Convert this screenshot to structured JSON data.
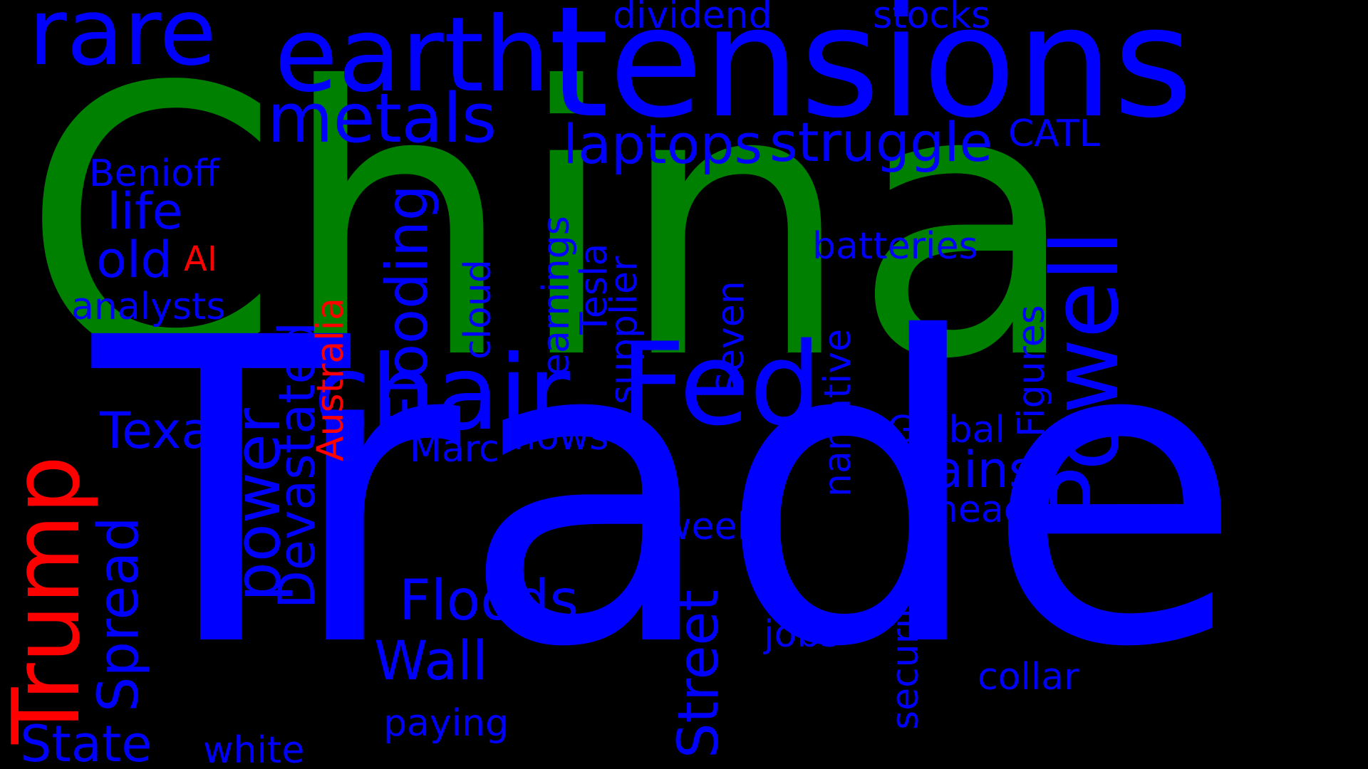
{
  "colors": {
    "background": "#000000",
    "blue": "#0000ff",
    "green": "#008000",
    "red": "#ff0000"
  },
  "words": [
    {
      "id": "china",
      "text": "China",
      "color": "green"
    },
    {
      "id": "trade",
      "text": "Trade",
      "color": "blue"
    },
    {
      "id": "tensions",
      "text": "tensions",
      "color": "blue"
    },
    {
      "id": "earth",
      "text": "earth",
      "color": "blue"
    },
    {
      "id": "rare",
      "text": "rare",
      "color": "blue"
    },
    {
      "id": "powell",
      "text": "Powell",
      "color": "blue"
    },
    {
      "id": "trump",
      "text": "Trump",
      "color": "red"
    },
    {
      "id": "chair",
      "text": "chair",
      "color": "blue"
    },
    {
      "id": "fed",
      "text": "Fed",
      "color": "blue"
    },
    {
      "id": "metals",
      "text": "metals",
      "color": "blue"
    },
    {
      "id": "laptops",
      "text": "laptops",
      "color": "blue"
    },
    {
      "id": "struggle",
      "text": "struggle",
      "color": "blue"
    },
    {
      "id": "dividend",
      "text": "dividend",
      "color": "blue"
    },
    {
      "id": "stocks",
      "text": "stocks",
      "color": "blue"
    },
    {
      "id": "catl",
      "text": "CATL",
      "color": "blue"
    },
    {
      "id": "benioff",
      "text": "Benioff",
      "color": "blue"
    },
    {
      "id": "life",
      "text": "life",
      "color": "blue"
    },
    {
      "id": "old",
      "text": "old",
      "color": "blue"
    },
    {
      "id": "ai",
      "text": "AI",
      "color": "red"
    },
    {
      "id": "analysts",
      "text": "analysts",
      "color": "blue"
    },
    {
      "id": "texas",
      "text": "Texas",
      "color": "blue"
    },
    {
      "id": "power",
      "text": "power",
      "color": "blue"
    },
    {
      "id": "spread",
      "text": "Spread",
      "color": "blue"
    },
    {
      "id": "state",
      "text": "State",
      "color": "blue"
    },
    {
      "id": "white",
      "text": "white",
      "color": "blue"
    },
    {
      "id": "devastated",
      "text": "Devastated",
      "color": "blue"
    },
    {
      "id": "australia",
      "text": "Australia",
      "color": "red"
    },
    {
      "id": "flooding",
      "text": "Flooding",
      "color": "blue"
    },
    {
      "id": "cloud",
      "text": "cloud",
      "color": "blue"
    },
    {
      "id": "earnings",
      "text": "earnings",
      "color": "blue"
    },
    {
      "id": "tesla",
      "text": "Tesla",
      "color": "blue"
    },
    {
      "id": "supplier",
      "text": "supplier",
      "color": "blue"
    },
    {
      "id": "seven",
      "text": "Seven",
      "color": "blue"
    },
    {
      "id": "narrative",
      "text": "narrative",
      "color": "blue"
    },
    {
      "id": "figures",
      "text": "Figures",
      "color": "blue"
    },
    {
      "id": "batteries",
      "text": "batteries",
      "color": "blue"
    },
    {
      "id": "global",
      "text": "Global",
      "color": "blue"
    },
    {
      "id": "rains",
      "text": "Rains",
      "color": "blue"
    },
    {
      "id": "ahead",
      "text": "ahead",
      "color": "blue"
    },
    {
      "id": "marc",
      "text": "Marc",
      "color": "blue"
    },
    {
      "id": "flows",
      "text": "flows",
      "color": "blue"
    },
    {
      "id": "week",
      "text": "week",
      "color": "blue"
    },
    {
      "id": "floods",
      "text": "Floods",
      "color": "blue"
    },
    {
      "id": "wall",
      "text": "Wall",
      "color": "blue"
    },
    {
      "id": "paying",
      "text": "paying",
      "color": "blue"
    },
    {
      "id": "street",
      "text": "Street",
      "color": "blue"
    },
    {
      "id": "jobs",
      "text": "jobs",
      "color": "blue"
    },
    {
      "id": "security",
      "text": "security",
      "color": "blue"
    },
    {
      "id": "collar",
      "text": "collar",
      "color": "blue"
    }
  ]
}
